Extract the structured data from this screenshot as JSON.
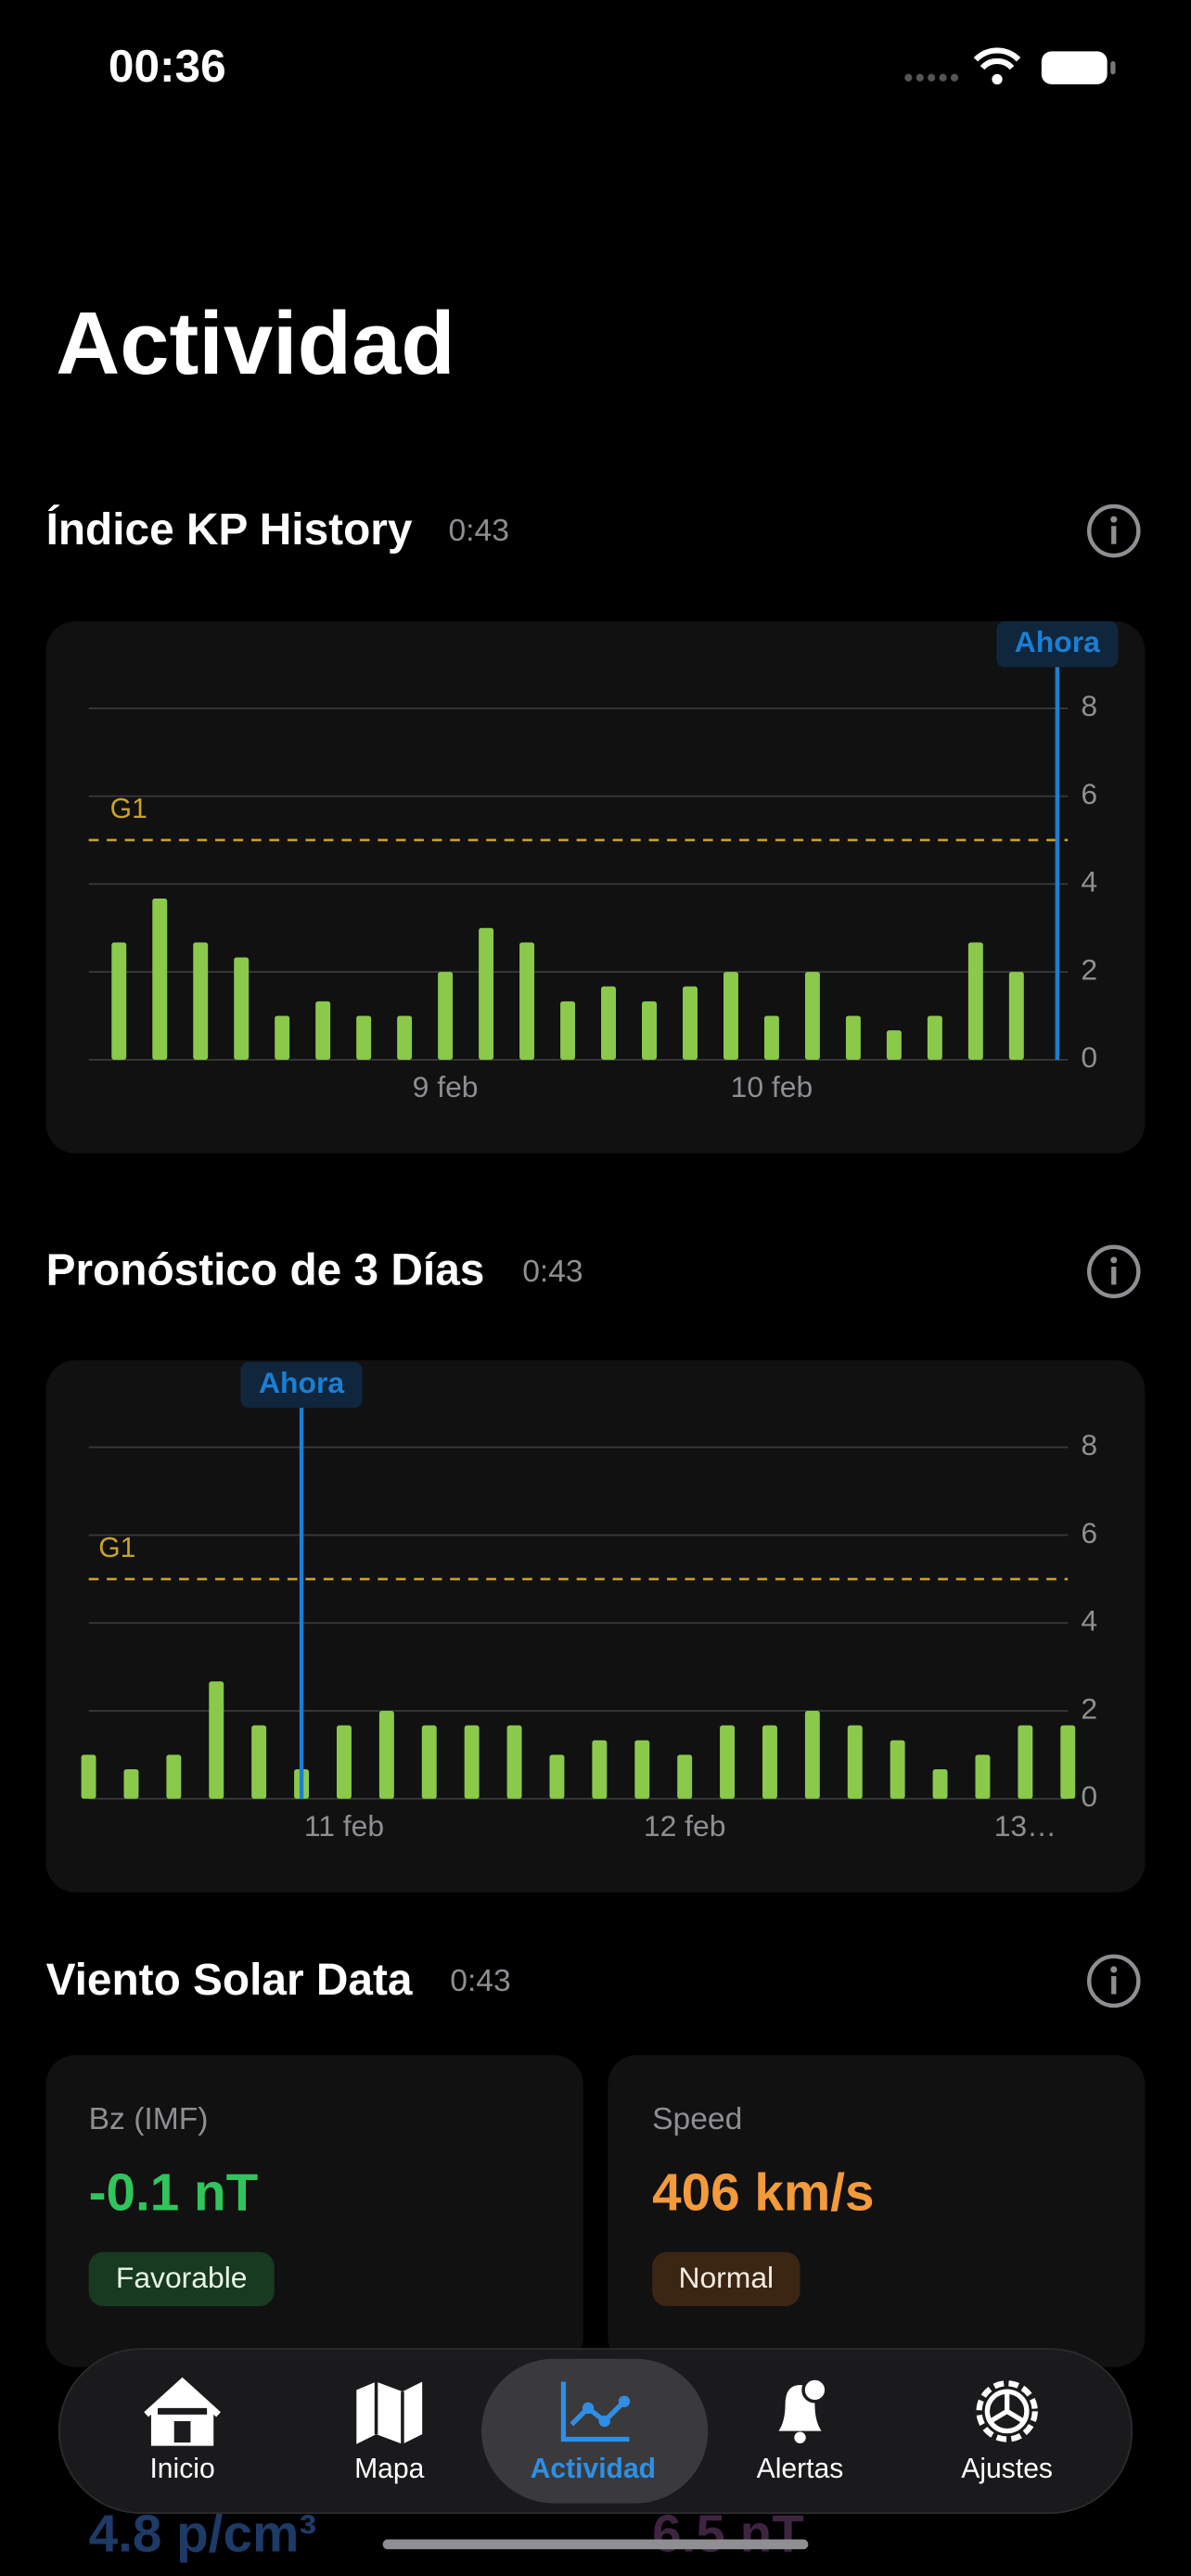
{
  "status_bar": {
    "time": "00:36"
  },
  "header": {
    "title": "Actividad"
  },
  "chart_data": [
    {
      "type": "bar",
      "title": "Índice KP History",
      "updated": "0:43",
      "categories": [
        null,
        null,
        null,
        null,
        null,
        null,
        null,
        null,
        "9 feb",
        null,
        null,
        null,
        null,
        null,
        null,
        null,
        "10 feb",
        null,
        null,
        null,
        null,
        null,
        null,
        null
      ],
      "values": [
        2.67,
        3.67,
        2.67,
        2.33,
        1,
        1.33,
        1,
        1,
        2,
        3,
        2.67,
        1.33,
        1.67,
        1.33,
        1.67,
        2,
        1,
        2,
        1,
        0.67,
        1,
        2.67,
        2,
        null
      ],
      "color": "#8bc94b",
      "ylim": [
        0,
        8
      ],
      "yticks": [
        0,
        2,
        4,
        6,
        8
      ],
      "grid": true,
      "threshold": {
        "label": "G1",
        "value": 5,
        "color": "#c9a227"
      },
      "now_marker": {
        "label": "Ahora",
        "category_index": 23,
        "color": "#1a7fd4"
      }
    },
    {
      "type": "bar",
      "title": "Pronóstico de 3 Días",
      "updated": "0:43",
      "categories": [
        null,
        null,
        null,
        null,
        null,
        null,
        "11 feb",
        null,
        null,
        null,
        null,
        null,
        null,
        null,
        "12 feb",
        null,
        null,
        null,
        null,
        null,
        null,
        null,
        "13…",
        null
      ],
      "values": [
        1,
        0.67,
        1,
        2.67,
        1.67,
        0.67,
        1.67,
        2,
        1.67,
        1.67,
        1.67,
        1,
        1.33,
        1.33,
        1,
        1.67,
        1.67,
        2,
        1.67,
        1.33,
        0.67,
        1,
        1.67,
        1.67
      ],
      "color": "#8bc94b",
      "ylim": [
        0,
        8
      ],
      "yticks": [
        0,
        2,
        4,
        6,
        8
      ],
      "grid": true,
      "threshold": {
        "label": "G1",
        "value": 5,
        "color": "#c9a227"
      },
      "now_marker": {
        "label": "Ahora",
        "category_index": 5,
        "color": "#1a7fd4"
      }
    }
  ],
  "solar_wind": {
    "title": "Viento Solar Data",
    "updated": "0:43",
    "cards": [
      {
        "label": "Bz (IMF)",
        "value": "-0.1 nT",
        "status": "Favorable"
      },
      {
        "label": "Speed",
        "value": "406 km/s",
        "status": "Normal"
      },
      {
        "value": "4.8 p/cm³"
      },
      {
        "value": "6.5 nT"
      }
    ]
  },
  "tab_bar": {
    "items": [
      "Inicio",
      "Mapa",
      "Actividad",
      "Alertas",
      "Ajustes"
    ]
  }
}
